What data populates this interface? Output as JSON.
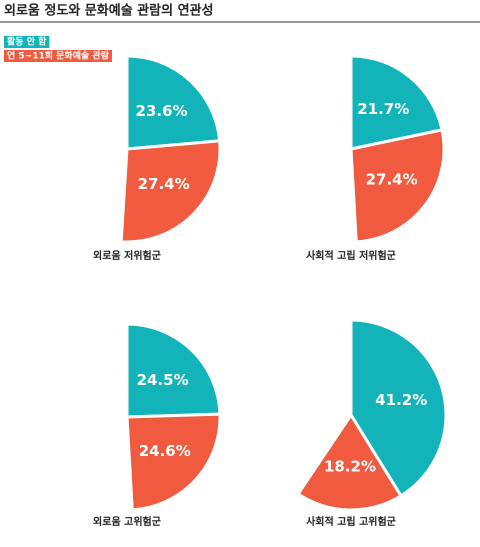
{
  "title": "외로움 정도와 문화예술 관람의 연관성",
  "legend": {
    "names": [
      "활동 안 함",
      "연 5~11회 문화예술 관람"
    ],
    "colors": [
      "#12b3b9",
      "#f05a3f"
    ]
  },
  "chart_data": [
    {
      "type": "pie",
      "label": "외로움 저위험군",
      "values": [
        23.6,
        27.4
      ],
      "value_labels": [
        "23.6%",
        "27.4%"
      ]
    },
    {
      "type": "pie",
      "label": "사회적 고립 저위험군",
      "values": [
        21.7,
        27.4
      ],
      "value_labels": [
        "21.7%",
        "27.4%"
      ]
    },
    {
      "type": "pie",
      "label": "외로움 고위험군",
      "values": [
        24.5,
        24.6
      ],
      "value_labels": [
        "24.5%",
        "24.6%"
      ]
    },
    {
      "type": "pie",
      "label": "사회적 고립 고위험군",
      "values": [
        41.2,
        18.2
      ],
      "value_labels": [
        "41.2%",
        "18.2%"
      ]
    }
  ]
}
